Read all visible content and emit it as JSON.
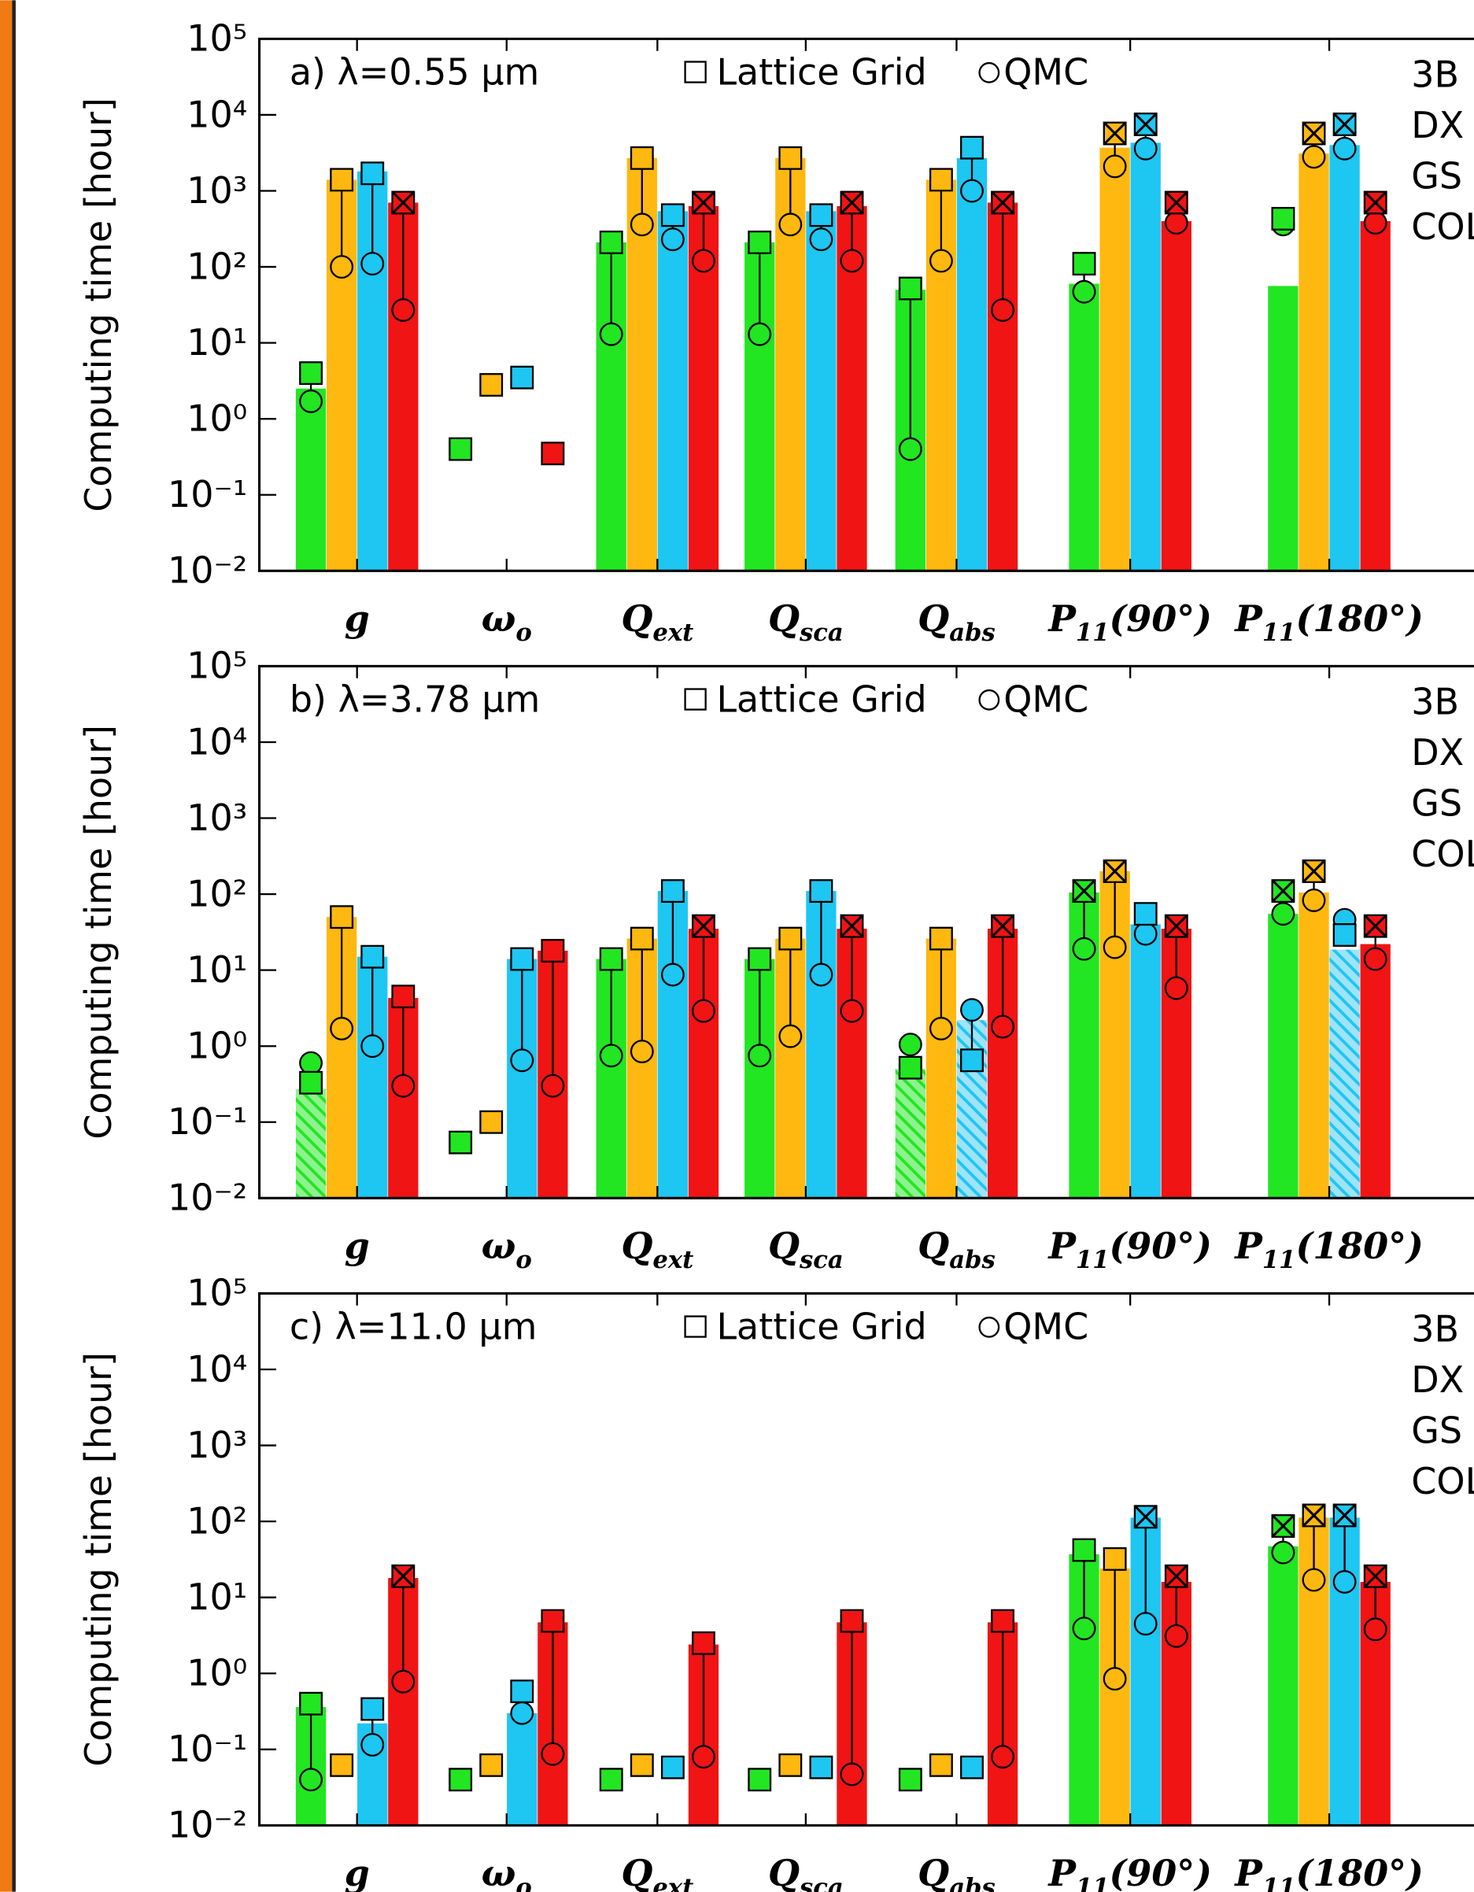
{
  "chart_data": [
    {
      "type": "bar",
      "title": "a) λ=0.55 μm",
      "y_label": "Computing time [hour]",
      "marker_labels": [
        "Lattice Grid",
        "QMC"
      ],
      "log_scale": true,
      "categories": [
        "g",
        "ωo",
        "Qext",
        "Qsca",
        "Qabs",
        "P11(90°)",
        "P11(180°)"
      ],
      "ylim": [
        0.01,
        100000
      ],
      "yticks": [
        {
          "value": 0.01,
          "label": "10⁻²"
        },
        {
          "value": 0.1,
          "label": "10⁻¹"
        },
        {
          "value": 1,
          "label": "10⁰"
        },
        {
          "value": 10,
          "label": "10¹"
        },
        {
          "value": 100,
          "label": "10²"
        },
        {
          "value": 1000,
          "label": "10³"
        },
        {
          "value": 10000,
          "label": "10⁴"
        },
        {
          "value": 100000,
          "label": "10⁵"
        }
      ],
      "series": [
        {
          "name": "3B",
          "color": "#22e622",
          "values": [
            2.5,
            null,
            210,
            210,
            50,
            60,
            56
          ],
          "lattice": [
            4,
            0.4,
            210,
            210,
            52,
            110,
            430
          ],
          "qmc": [
            1.7,
            null,
            13,
            13,
            0.4,
            47,
            360
          ]
        },
        {
          "name": "DX",
          "color": "#ffb80f",
          "values": [
            1400,
            null,
            2700,
            2700,
            1400,
            3700,
            3100
          ],
          "lattice": [
            1400,
            2.8,
            2700,
            2700,
            1400,
            5700,
            5700
          ],
          "qmc": [
            100,
            null,
            360,
            360,
            120,
            2100,
            2800
          ],
          "crossed": [
            false,
            false,
            false,
            false,
            false,
            true,
            true
          ]
        },
        {
          "name": "GS",
          "color": "#1ec6f2",
          "values": [
            1800,
            null,
            540,
            540,
            2700,
            4300,
            4000
          ],
          "lattice": [
            1700,
            3.5,
            480,
            480,
            3700,
            7500,
            7500
          ],
          "qmc": [
            110,
            null,
            230,
            230,
            1000,
            3600,
            3600
          ],
          "crossed": [
            false,
            false,
            false,
            false,
            false,
            true,
            true
          ]
        },
        {
          "name": "COL",
          "color": "#f01414",
          "values": [
            700,
            null,
            630,
            630,
            700,
            400,
            400
          ],
          "lattice": [
            700,
            0.35,
            700,
            700,
            700,
            700,
            700
          ],
          "qmc": [
            27,
            null,
            120,
            120,
            27,
            380,
            380
          ],
          "crossed": [
            true,
            false,
            true,
            true,
            true,
            true,
            true
          ]
        }
      ]
    },
    {
      "type": "bar",
      "title": "b) λ=3.78 μm",
      "y_label": "Computing time [hour]",
      "marker_labels": [
        "Lattice Grid",
        "QMC"
      ],
      "log_scale": true,
      "categories": [
        "g",
        "ωo",
        "Qext",
        "Qsca",
        "Qabs",
        "P11(90°)",
        "P11(180°)"
      ],
      "ylim": [
        0.01,
        100000
      ],
      "yticks": [
        {
          "value": 0.01,
          "label": "10⁻²"
        },
        {
          "value": 0.1,
          "label": "10⁻¹"
        },
        {
          "value": 1,
          "label": "10⁰"
        },
        {
          "value": 10,
          "label": "10¹"
        },
        {
          "value": 100,
          "label": "10²"
        },
        {
          "value": 1000,
          "label": "10³"
        },
        {
          "value": 10000,
          "label": "10⁴"
        },
        {
          "value": 100000,
          "label": "10⁵"
        }
      ],
      "series": [
        {
          "name": "3B",
          "color": "#22e622",
          "values": [
            0.27,
            null,
            14,
            14,
            0.5,
            105,
            55
          ],
          "lattice": [
            0.33,
            0.054,
            14,
            14,
            0.52,
            110,
            110
          ],
          "qmc": [
            0.6,
            null,
            0.75,
            0.75,
            1.05,
            19,
            55
          ],
          "crossed": [
            false,
            false,
            false,
            false,
            false,
            true,
            true
          ],
          "hatched": [
            true,
            false,
            false,
            false,
            true,
            false,
            false
          ]
        },
        {
          "name": "DX",
          "color": "#ffb80f",
          "values": [
            50,
            null,
            26,
            26,
            26,
            200,
            105
          ],
          "lattice": [
            50,
            0.1,
            26,
            26,
            26,
            200,
            200
          ],
          "qmc": [
            1.7,
            null,
            0.85,
            1.35,
            1.7,
            20,
            83
          ],
          "crossed": [
            false,
            false,
            false,
            false,
            false,
            true,
            true
          ]
        },
        {
          "name": "GS",
          "color": "#1ec6f2",
          "values": [
            15,
            14,
            110,
            110,
            2.2,
            40,
            18.6
          ],
          "lattice": [
            15,
            14,
            110,
            110,
            0.65,
            55,
            29
          ],
          "qmc": [
            1.0,
            0.65,
            8.7,
            8.7,
            3.0,
            30,
            46
          ],
          "hatched": [
            false,
            false,
            false,
            false,
            true,
            false,
            true
          ]
        },
        {
          "name": "COL",
          "color": "#f01414",
          "values": [
            4.3,
            18,
            35,
            35,
            35,
            35,
            22
          ],
          "lattice": [
            4.5,
            18,
            38,
            38,
            38,
            38,
            38
          ],
          "qmc": [
            0.3,
            0.3,
            2.9,
            2.9,
            1.8,
            5.8,
            14
          ],
          "crossed": [
            false,
            false,
            true,
            true,
            true,
            true,
            true
          ]
        }
      ]
    },
    {
      "type": "bar",
      "title": "c) λ=11.0 μm",
      "y_label": "Computing time [hour]",
      "marker_labels": [
        "Lattice Grid",
        "QMC"
      ],
      "log_scale": true,
      "categories": [
        "g",
        "ωo",
        "Qext",
        "Qsca",
        "Qabs",
        "P11(90°)",
        "P11(180°)"
      ],
      "ylim": [
        0.01,
        100000
      ],
      "yticks": [
        {
          "value": 0.01,
          "label": "10⁻²"
        },
        {
          "value": 0.1,
          "label": "10⁻¹"
        },
        {
          "value": 1,
          "label": "10⁰"
        },
        {
          "value": 10,
          "label": "10¹"
        },
        {
          "value": 100,
          "label": "10²"
        },
        {
          "value": 1000,
          "label": "10³"
        },
        {
          "value": 10000,
          "label": "10⁴"
        },
        {
          "value": 100000,
          "label": "10⁵"
        }
      ],
      "series": [
        {
          "name": "3B",
          "color": "#22e622",
          "values": [
            0.36,
            null,
            null,
            null,
            null,
            37,
            47
          ],
          "lattice": [
            0.4,
            0.04,
            0.04,
            0.04,
            0.04,
            42,
            87
          ],
          "qmc": [
            0.04,
            null,
            null,
            null,
            null,
            3.9,
            39
          ],
          "crossed": [
            false,
            false,
            false,
            false,
            false,
            false,
            true
          ]
        },
        {
          "name": "DX",
          "color": "#ffb80f",
          "values": [
            null,
            null,
            null,
            null,
            null,
            24,
            112
          ],
          "lattice": [
            0.062,
            0.062,
            0.062,
            0.062,
            0.062,
            32,
            120
          ],
          "qmc": [
            null,
            null,
            null,
            null,
            null,
            0.85,
            17
          ],
          "crossed": [
            false,
            false,
            false,
            false,
            false,
            false,
            true
          ]
        },
        {
          "name": "GS",
          "color": "#1ec6f2",
          "values": [
            0.22,
            0.3,
            null,
            null,
            null,
            112,
            112
          ],
          "lattice": [
            0.34,
            0.58,
            0.058,
            0.058,
            0.058,
            115,
            120
          ],
          "qmc": [
            0.115,
            0.3,
            null,
            null,
            null,
            4.5,
            16
          ],
          "crossed": [
            false,
            false,
            false,
            false,
            false,
            true,
            true
          ]
        },
        {
          "name": "COL",
          "color": "#f01414",
          "values": [
            18,
            4.7,
            2.4,
            4.7,
            4.7,
            16,
            16
          ],
          "lattice": [
            19,
            4.9,
            2.5,
            4.9,
            4.9,
            19,
            19
          ],
          "qmc": [
            0.78,
            0.087,
            0.08,
            0.047,
            0.08,
            3.1,
            3.8
          ],
          "crossed": [
            true,
            false,
            false,
            false,
            false,
            true,
            true
          ]
        }
      ]
    }
  ]
}
